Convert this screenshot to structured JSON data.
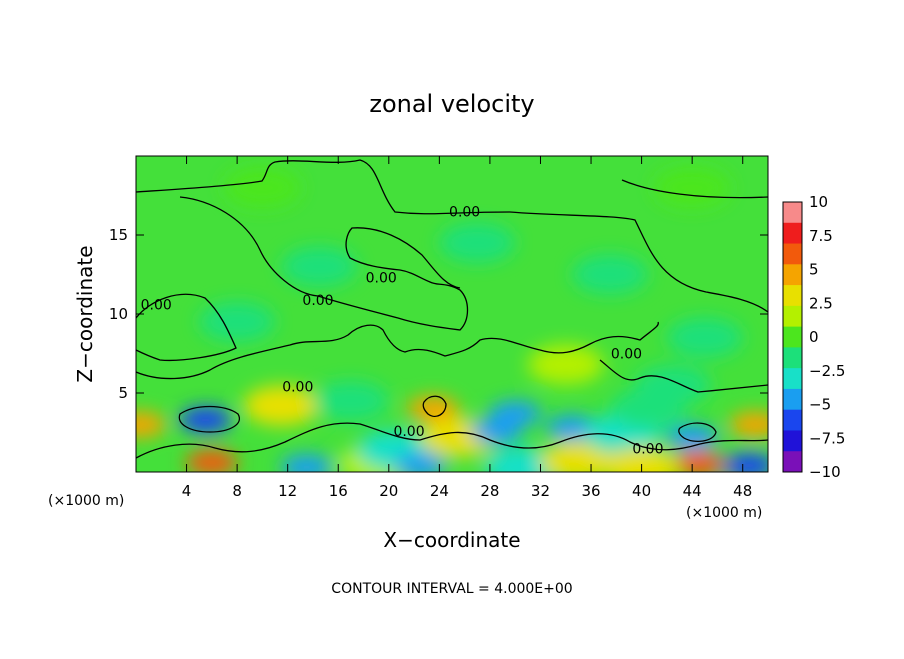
{
  "chart_data": {
    "type": "heatmap",
    "title": "zonal velocity",
    "xlabel": "X−coordinate",
    "ylabel": "Z−coordinate",
    "x_unit": "(×1000 m)",
    "z_unit": "(×1000 m)",
    "xlim": [
      0,
      50
    ],
    "ylim": [
      0,
      20
    ],
    "x_ticks": [
      4,
      8,
      12,
      16,
      20,
      24,
      28,
      32,
      36,
      40,
      44,
      48
    ],
    "y_ticks": [
      5,
      10,
      15
    ],
    "colorbar": {
      "min": -10,
      "max": 10,
      "ticks": [
        "10",
        "7.5",
        "5",
        "2.5",
        "0",
        "−2.5",
        "−5",
        "−7.5",
        "−10"
      ],
      "colors": [
        "#f78a8a",
        "#ef1d1d",
        "#f25a0c",
        "#f5a400",
        "#e8e000",
        "#b4f000",
        "#4ce61e",
        "#1ce07a",
        "#18e0c8",
        "#1a9ef0",
        "#1a46ee",
        "#2012d8",
        "#7a10b8"
      ]
    },
    "contour_interval": "CONTOUR INTERVAL = 4.000E+00",
    "contour_labels": [
      {
        "text": "0.00",
        "x": 26.0,
        "z": 16.5
      },
      {
        "text": "0.00",
        "x": 19.4,
        "z": 12.3
      },
      {
        "text": "0.00",
        "x": 14.4,
        "z": 10.9
      },
      {
        "text": "0.00",
        "x": 1.6,
        "z": 10.6
      },
      {
        "text": "0.00",
        "x": 12.8,
        "z": 5.4
      },
      {
        "text": "0.00",
        "x": 38.8,
        "z": 7.5
      },
      {
        "text": "0.00",
        "x": 21.6,
        "z": 2.6
      },
      {
        "text": "0.00",
        "x": 40.5,
        "z": 1.5
      }
    ],
    "anomalies": [
      {
        "x": 5.5,
        "z": 3.3,
        "value": -6
      },
      {
        "x": 6.0,
        "z": 0.6,
        "value": 5.5
      },
      {
        "x": 0.3,
        "z": 3.0,
        "value": 4.5
      },
      {
        "x": 11.5,
        "z": 4.2,
        "value": 3
      },
      {
        "x": 13.5,
        "z": 0.3,
        "value": -5
      },
      {
        "x": 17.0,
        "z": 4.5,
        "value": -2
      },
      {
        "x": 19.0,
        "z": 0.5,
        "value": 2
      },
      {
        "x": 20.5,
        "z": 1.4,
        "value": -3
      },
      {
        "x": 22.5,
        "z": 0.4,
        "value": -5
      },
      {
        "x": 23.5,
        "z": 4.0,
        "value": 5
      },
      {
        "x": 25.5,
        "z": 2.2,
        "value": 3
      },
      {
        "x": 28.5,
        "z": 2.6,
        "value": -5
      },
      {
        "x": 30.0,
        "z": 3.7,
        "value": -4
      },
      {
        "x": 30.5,
        "z": 0.3,
        "value": -3
      },
      {
        "x": 34.5,
        "z": 2.8,
        "value": -4.5
      },
      {
        "x": 35.0,
        "z": 0.7,
        "value": 3
      },
      {
        "x": 34.0,
        "z": 6.8,
        "value": 1.5
      },
      {
        "x": 38.5,
        "z": 2.4,
        "value": -2.5
      },
      {
        "x": 40.5,
        "z": 4.0,
        "value": -2
      },
      {
        "x": 42.5,
        "z": 5.5,
        "value": -2
      },
      {
        "x": 44.0,
        "z": 2.2,
        "value": -5
      },
      {
        "x": 44.5,
        "z": 0.5,
        "value": 5.5
      },
      {
        "x": 49.0,
        "z": 3.0,
        "value": 4.5
      },
      {
        "x": 48.5,
        "z": 0.4,
        "value": -6
      },
      {
        "x": 40.0,
        "z": 0.3,
        "value": 3
      },
      {
        "x": 8.0,
        "z": 9.5,
        "value": -2
      },
      {
        "x": 14.5,
        "z": 13.0,
        "value": -1.8
      },
      {
        "x": 27.0,
        "z": 14.5,
        "value": -2.2
      },
      {
        "x": 37.5,
        "z": 12.5,
        "value": -1.8
      },
      {
        "x": 45.0,
        "z": 8.5,
        "value": -1.5
      },
      {
        "x": 10.0,
        "z": 18.0,
        "value": 0.6
      },
      {
        "x": 44.0,
        "z": 18.0,
        "value": 0.5
      }
    ]
  }
}
